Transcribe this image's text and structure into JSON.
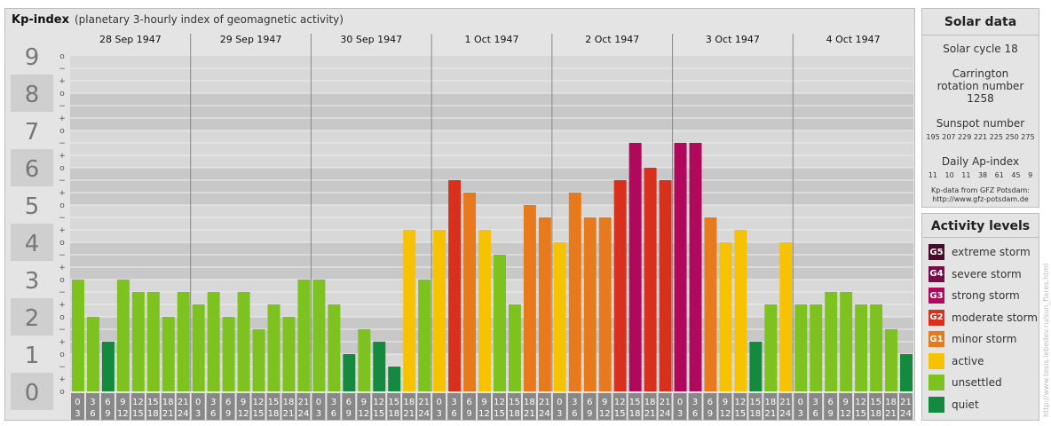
{
  "title": {
    "main": "Kp-index",
    "sub": "(planetary 3-hourly index of geomagnetic activity)"
  },
  "chart_data": {
    "type": "bar",
    "ylim": [
      0,
      9
    ],
    "y_ticks": [
      "0",
      "1",
      "2",
      "3",
      "4",
      "5",
      "6",
      "7",
      "8",
      "9"
    ],
    "minor_ticks": [
      "o",
      "+",
      "−",
      "o",
      "+",
      "−",
      "o",
      "+",
      "−",
      "o",
      "+",
      "−",
      "o",
      "+",
      "−",
      "o",
      "+",
      "−",
      "o",
      "+",
      "−",
      "o",
      "+",
      "−",
      "o",
      "+",
      "−",
      "o"
    ],
    "days": [
      "28 Sep 1947",
      "29 Sep 1947",
      "30 Sep 1947",
      "1 Oct 1947",
      "2 Oct 1947",
      "3 Oct 1947",
      "4 Oct 1947"
    ],
    "interval_top": [
      "0",
      "3",
      "6",
      "9",
      "12",
      "15",
      "18",
      "21"
    ],
    "interval_bottom": [
      "3",
      "6",
      "9",
      "12",
      "15",
      "18",
      "21",
      "24"
    ],
    "values": [
      3.0,
      2.0,
      1.333,
      3.0,
      2.667,
      2.667,
      2.0,
      2.667,
      2.333,
      2.667,
      2.0,
      2.667,
      1.667,
      2.333,
      2.0,
      3.0,
      3.0,
      2.333,
      1.0,
      1.667,
      1.333,
      0.667,
      4.333,
      3.0,
      4.333,
      5.667,
      5.333,
      4.333,
      3.667,
      2.333,
      5.0,
      4.667,
      4.0,
      5.333,
      4.667,
      4.667,
      5.667,
      6.667,
      6.0,
      5.667,
      6.667,
      6.667,
      4.667,
      4.0,
      4.333,
      1.333,
      2.333,
      4.0,
      2.333,
      2.333,
      2.667,
      2.667,
      2.333,
      2.333,
      1.667,
      1.0
    ]
  },
  "solar": {
    "heading": "Solar data",
    "cycle": "Solar cycle 18",
    "carrington": "Carrington rotation number 1258",
    "sunspot_label": "Sunspot number",
    "sunspot_values": "195 207 229 221 225 250 275",
    "ap_label": "Daily Ap-index",
    "ap_values": "11 10 11 38 61 45 9",
    "source_line1": "Kp-data from GFZ Potsdam:",
    "source_line2": "http://www.gfz-potsdam.de"
  },
  "levels": {
    "heading": "Activity levels",
    "items": [
      {
        "code": "G5",
        "label": "extreme storm",
        "color": "#4a0a2a"
      },
      {
        "code": "G4",
        "label": "severe storm",
        "color": "#7a0a4a"
      },
      {
        "code": "G3",
        "label": "strong storm",
        "color": "#b0085a"
      },
      {
        "code": "G2",
        "label": "moderate storm",
        "color": "#d8301c"
      },
      {
        "code": "G1",
        "label": "minor storm",
        "color": "#e87a1e"
      },
      {
        "code": "",
        "label": "active",
        "color": "#f7c200"
      },
      {
        "code": "",
        "label": "unsettled",
        "color": "#7dc21e"
      },
      {
        "code": "",
        "label": "quiet",
        "color": "#138a3e"
      }
    ]
  },
  "watermark": "http://www.tesis.lebedev.ru/sun_flares.html"
}
